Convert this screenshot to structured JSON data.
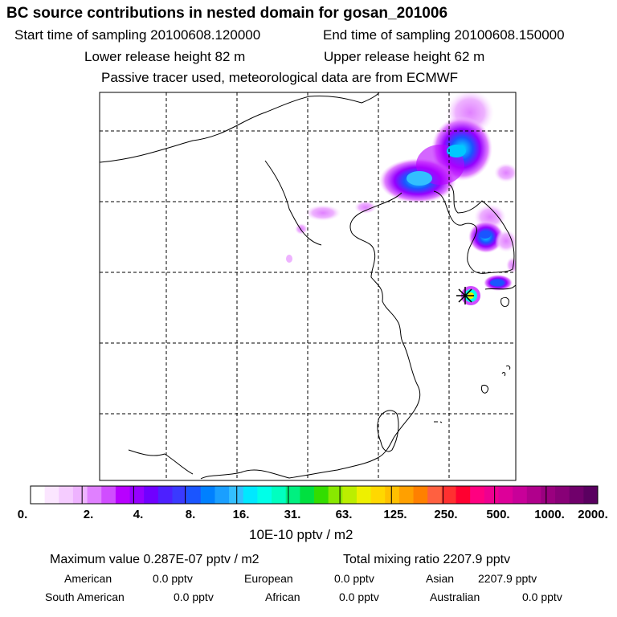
{
  "title": "BC  source contributions in nested domain for gosan_201006",
  "header": {
    "start_label": "Start time of sampling 20100608.120000",
    "end_label": "End time of sampling 20100608.150000",
    "lower_label": "Lower release height   82 m",
    "upper_label": "Upper release height   62 m",
    "tracer_note": "Passive tracer used, meteorological data are from ECMWF"
  },
  "colorbar": {
    "unit_label": "10E-10 pptv / m2",
    "ticks": [
      "0.",
      "2.",
      "4.",
      "8.",
      "16.",
      "31.",
      "63.",
      "125.",
      "250.",
      "500.",
      "1000.",
      "2000."
    ],
    "colors": [
      "#ffffff",
      "#fbe6ff",
      "#f5ccff",
      "#eeb3ff",
      "#e080ff",
      "#d04dff",
      "#b800ff",
      "#9600ff",
      "#7000ff",
      "#4d20ff",
      "#3a3aff",
      "#1a55ff",
      "#0080ff",
      "#1a9fff",
      "#33bfff",
      "#00e8ff",
      "#00ffe8",
      "#00ffc0",
      "#00f080",
      "#00e040",
      "#33dd00",
      "#88e800",
      "#bbee00",
      "#eef000",
      "#ffd800",
      "#ffc000",
      "#ffa000",
      "#ff8000",
      "#ff6040",
      "#ff3030",
      "#ff0030",
      "#ff0080",
      "#ee0090",
      "#dd0099",
      "#c80099",
      "#b0008c",
      "#9a007f",
      "#880077",
      "#70006b",
      "#5a0060"
    ]
  },
  "footer": {
    "max_value": "Maximum value  0.287E-07 pptv / m2",
    "total_mixing": "Total mixing ratio      2207.9 pptv",
    "american": "American",
    "american_val": "0.0 pptv",
    "european": "European",
    "european_val": "0.0 pptv",
    "asian": "Asian",
    "asian_val": "2207.9 pptv",
    "south_american": "South American",
    "south_american_val": "0.0 pptv",
    "african": "African",
    "african_val": "0.0 pptv",
    "australian": "Australian",
    "australian_val": "0.0 pptv"
  },
  "colors": {
    "frame": "#000000",
    "grid": "#000000"
  }
}
